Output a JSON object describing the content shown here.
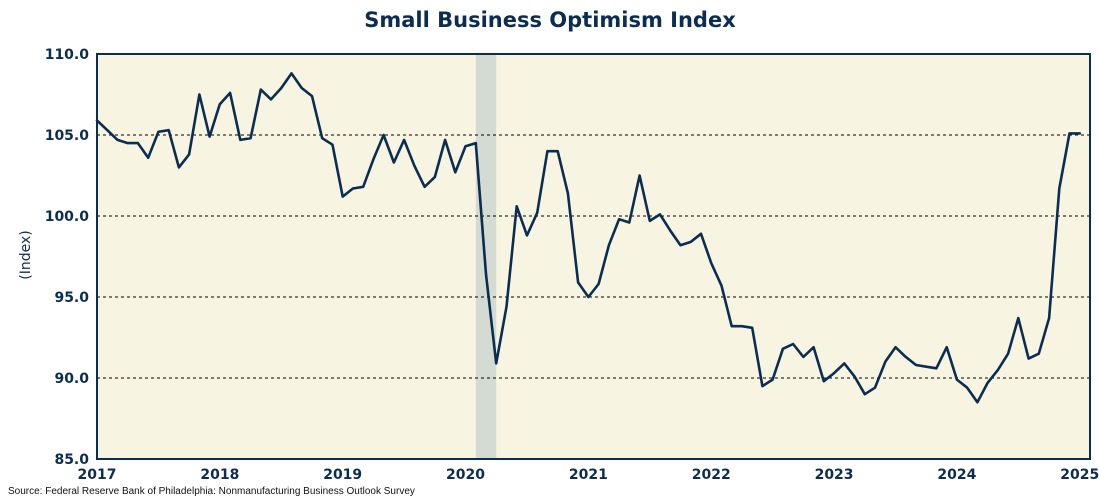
{
  "chart_data": {
    "type": "line",
    "title": "Small Business Optimism Index",
    "ylabel": "(Index)",
    "xlabel": "",
    "ylim": [
      85,
      110
    ],
    "xlim": [
      "2017-01",
      "2025-02"
    ],
    "yticks": [
      "85.0",
      "90.0",
      "95.0",
      "100.0",
      "105.0",
      "110.0"
    ],
    "xticks": [
      "2017",
      "2018",
      "2019",
      "2020",
      "2021",
      "2022",
      "2023",
      "2024",
      "2025"
    ],
    "grid": "horizontal dashed at 90, 95, 100, 105",
    "recession_shading": {
      "start": "2020-02",
      "end": "2020-04"
    },
    "series": [
      {
        "x": [
          "2017-01",
          "2017-02",
          "2017-03",
          "2017-04",
          "2017-05",
          "2017-06",
          "2017-07",
          "2017-08",
          "2017-09",
          "2017-10",
          "2017-11",
          "2017-12",
          "2018-01",
          "2018-02",
          "2018-03",
          "2018-04",
          "2018-05",
          "2018-06",
          "2018-07",
          "2018-08",
          "2018-09",
          "2018-10",
          "2018-11",
          "2018-12",
          "2019-01",
          "2019-02",
          "2019-03",
          "2019-04",
          "2019-05",
          "2019-06",
          "2019-07",
          "2019-08",
          "2019-09",
          "2019-10",
          "2019-11",
          "2019-12",
          "2020-01",
          "2020-02",
          "2020-03",
          "2020-04",
          "2020-05",
          "2020-06",
          "2020-07",
          "2020-08",
          "2020-09",
          "2020-10",
          "2020-11",
          "2020-12",
          "2021-01",
          "2021-02",
          "2021-03",
          "2021-04",
          "2021-05",
          "2021-06",
          "2021-07",
          "2021-08",
          "2021-09",
          "2021-10",
          "2021-11",
          "2021-12",
          "2022-01",
          "2022-02",
          "2022-03",
          "2022-04",
          "2022-05",
          "2022-06",
          "2022-07",
          "2022-08",
          "2022-09",
          "2022-10",
          "2022-11",
          "2022-12",
          "2023-01",
          "2023-02",
          "2023-03",
          "2023-04",
          "2023-05",
          "2023-06",
          "2023-07",
          "2023-08",
          "2023-09",
          "2023-10",
          "2023-11",
          "2023-12",
          "2024-01",
          "2024-02",
          "2024-03",
          "2024-04",
          "2024-05",
          "2024-06",
          "2024-07",
          "2024-08",
          "2024-09",
          "2024-10",
          "2024-11",
          "2024-12",
          "2025-01"
        ],
        "values": [
          105.9,
          105.3,
          104.7,
          104.5,
          104.5,
          103.6,
          105.2,
          105.3,
          103.0,
          103.8,
          107.5,
          104.9,
          106.9,
          107.6,
          104.7,
          104.8,
          107.8,
          107.2,
          107.9,
          108.8,
          107.9,
          107.4,
          104.8,
          104.4,
          101.2,
          101.7,
          101.8,
          103.5,
          105.0,
          103.3,
          104.7,
          103.1,
          101.8,
          102.4,
          104.7,
          102.7,
          104.3,
          104.5,
          96.4,
          90.9,
          94.4,
          100.6,
          98.8,
          100.2,
          104.0,
          104.0,
          101.4,
          95.9,
          95.0,
          95.8,
          98.2,
          99.8,
          99.6,
          102.5,
          99.7,
          100.1,
          99.1,
          98.2,
          98.4,
          98.9,
          97.1,
          95.7,
          93.2,
          93.2,
          93.1,
          89.5,
          89.9,
          91.8,
          92.1,
          91.3,
          91.9,
          89.8,
          90.3,
          90.9,
          90.1,
          89.0,
          89.4,
          91.0,
          91.9,
          91.3,
          90.8,
          90.7,
          90.6,
          91.9,
          89.9,
          89.4,
          88.5,
          89.7,
          90.5,
          91.5,
          93.7,
          91.2,
          91.5,
          93.7,
          101.7,
          105.1,
          105.1
        ]
      }
    ],
    "colors": {
      "line": "#0b2d52",
      "plot_background": "#f8f4e2",
      "recession": "#d3dbd2",
      "axis_text": "#0b2d52",
      "grid": "#000000"
    }
  },
  "source": "Source: Federal Reserve Bank of Philadelphia: Nonmanufacturing Business Outlook Survey"
}
